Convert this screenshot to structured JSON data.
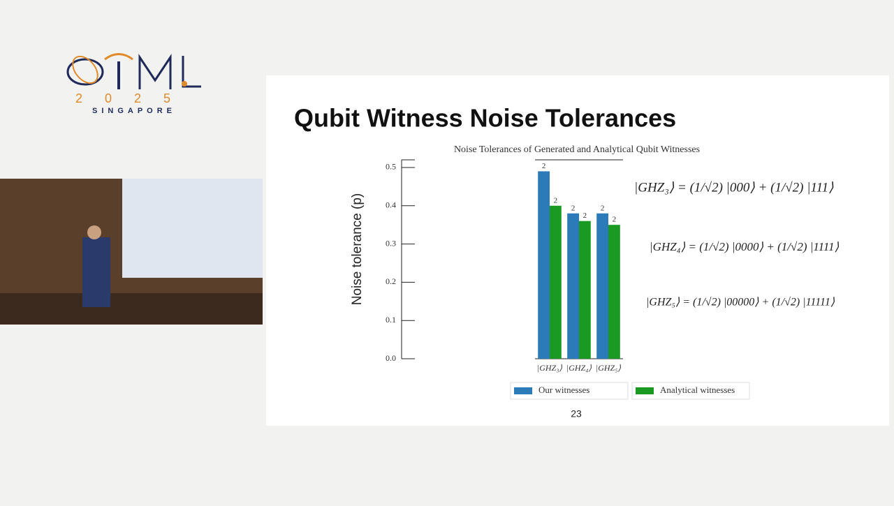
{
  "logo": {
    "year": "2025",
    "place": "SINGAPORE"
  },
  "slide": {
    "title": "Qubit Witness Noise Tolerances",
    "page": "23",
    "equations": [
      "|GHZ₃⟩ = (1/√2) |000⟩ + (1/√2) |111⟩",
      "|GHZ₄⟩ = (1/√2) |0000⟩ + (1/√2) |1111⟩",
      "|GHZ₅⟩ = (1/√2) |00000⟩ + (1/√2) |11111⟩"
    ]
  },
  "chart_data": {
    "type": "bar",
    "title": "Noise Tolerances of Generated and Analytical Qubit Witnesses",
    "y_label": "Noise tolerance (p)",
    "categories": [
      "|GHZ₃⟩",
      "|GHZ₄⟩",
      "|GHZ₅⟩"
    ],
    "series": [
      {
        "name": "Our witnesses",
        "color": "#2b7bb9",
        "values": [
          0.49,
          0.38,
          0.38
        ],
        "labels": [
          "2",
          "2",
          "2"
        ]
      },
      {
        "name": "Analytical witnesses",
        "color": "#1a9a22",
        "values": [
          0.4,
          0.36,
          0.35
        ],
        "labels": [
          "2",
          "2",
          "2"
        ]
      }
    ],
    "ylim": [
      0,
      0.52
    ],
    "yticks": [
      {
        "value": 0,
        "label": "0.0"
      },
      0.1,
      0.2,
      0.3,
      0.4,
      0.5
    ],
    "legend": "bottom"
  }
}
